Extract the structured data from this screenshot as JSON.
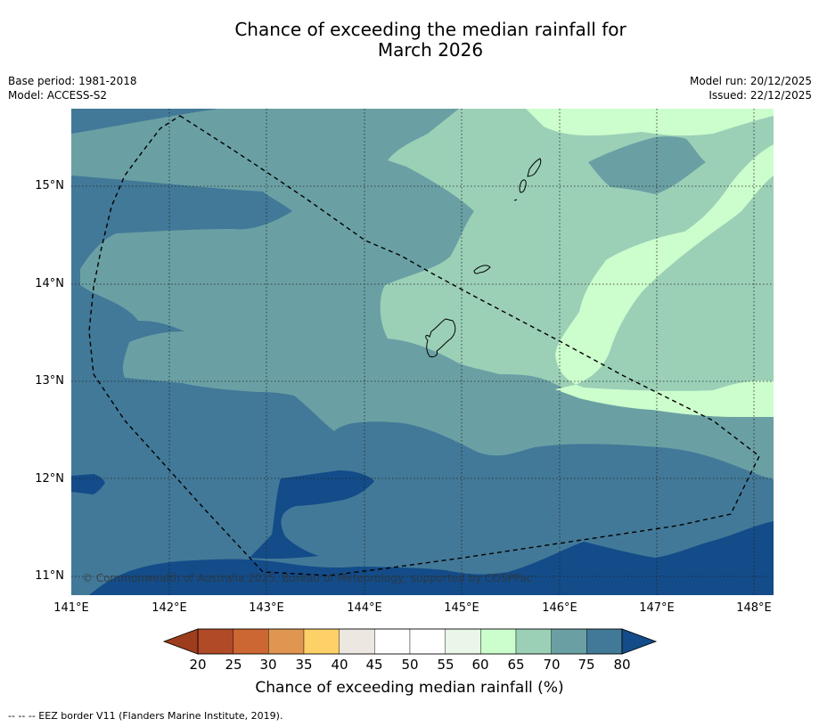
{
  "title": {
    "line1": "Chance of exceeding the median rainfall for",
    "line2": "March 2026"
  },
  "meta": {
    "base_period": "Base period: 1981-2018",
    "model": "Model: ACCESS-S2",
    "model_run": "Model run: 20/12/2025",
    "issued": "Issued: 22/12/2025"
  },
  "map": {
    "copyright": "© Commonwealth of Australia 2025, Bureau of Meteorology, supported by COSPPac",
    "lat_labels": [
      "15°N",
      "14°N",
      "13°N",
      "12°N",
      "11°N"
    ],
    "lon_labels": [
      "141°E",
      "142°E",
      "143°E",
      "144°E",
      "145°E",
      "146°E",
      "147°E",
      "148°E"
    ]
  },
  "colorbar": {
    "ticks": [
      "20",
      "25",
      "30",
      "35",
      "40",
      "45",
      "50",
      "55",
      "60",
      "65",
      "70",
      "75",
      "80"
    ],
    "title": "Chance of exceeding median rainfall (%)",
    "colors": {
      "below_20": "#9e3d1e",
      "c20_25": "#b04a27",
      "c25_30": "#cc6633",
      "c30_35": "#e09650",
      "c35_40": "#fdd068",
      "c40_45": "#ede7e1",
      "c45_50": "#ffffff",
      "c50_55": "#ffffff",
      "c55_60": "#e9f6e9",
      "c60_65": "#ccfdcc",
      "c65_70": "#9bd0b7",
      "c70_75": "#6aa0a4",
      "c75_80": "#427998",
      "above_80": "#134c89"
    }
  },
  "footer": {
    "legend": "--  --  -- EEZ border V11 (Flanders Marine Institute, 2019)."
  }
}
